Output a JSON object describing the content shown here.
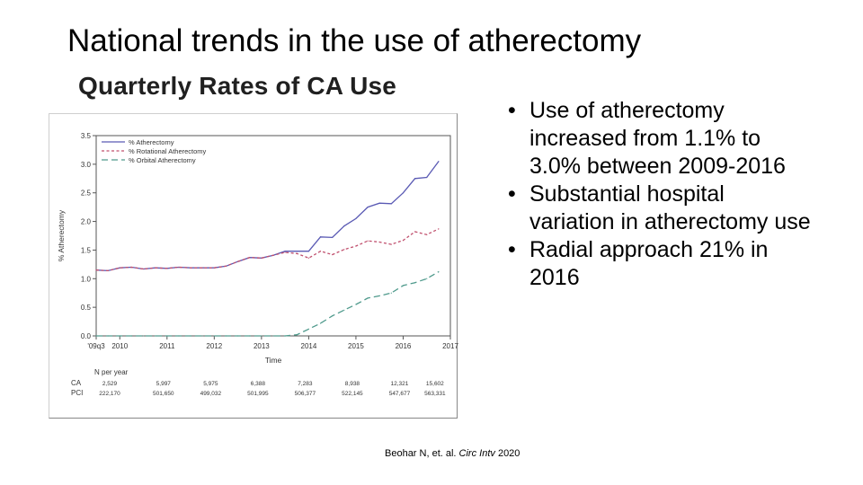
{
  "slide": {
    "title": "National trends in the use of atherectomy",
    "chart_heading": "Quarterly Rates of CA Use",
    "bullets": [
      "Use of atherectomy increased from 1.1% to 3.0% between 2009-2016",
      "Substantial hospital variation in atherectomy use",
      "Radial approach 21% in 2016"
    ],
    "bullet_glyph": "•",
    "citation": {
      "authors": "Beohar N, et. al. ",
      "journal": "Circ Intv",
      "year": " 2020"
    }
  },
  "table": {
    "header": "N per year",
    "rows": [
      {
        "label": "CA",
        "values": [
          "2,529",
          "5,997",
          "5,975",
          "6,388",
          "7,283",
          "8,938",
          "12,321",
          "15,602"
        ]
      },
      {
        "label": "PCI",
        "values": [
          "222,170",
          "501,650",
          "499,032",
          "501,995",
          "506,377",
          "522,145",
          "547,677",
          "563,331"
        ]
      }
    ]
  },
  "chart_data": {
    "type": "line",
    "title": "Quarterly Rates of CA Use",
    "xlabel": "Time",
    "ylabel": "% Atherectomy",
    "xlim": [
      2009.5,
      2017.0
    ],
    "ylim": [
      0.0,
      3.5
    ],
    "x_ticks": [
      2009.5,
      2010,
      2011,
      2012,
      2013,
      2014,
      2015,
      2016,
      2017
    ],
    "x_tick_labels": [
      "'09q3",
      "2010",
      "2011",
      "2012",
      "2013",
      "2014",
      "2015",
      "2016",
      "2017"
    ],
    "y_ticks": [
      0.0,
      0.5,
      1.0,
      1.5,
      2.0,
      2.5,
      3.0,
      3.5
    ],
    "y_tick_labels": [
      "0.0",
      "0.5",
      "1.0",
      "1.5",
      "2.0",
      "2.5",
      "3.0",
      "3.5"
    ],
    "grid": false,
    "legend_position": "top-left",
    "x": [
      2009.5,
      2009.75,
      2010.0,
      2010.25,
      2010.5,
      2010.75,
      2011.0,
      2011.25,
      2011.5,
      2011.75,
      2012.0,
      2012.25,
      2012.5,
      2012.75,
      2013.0,
      2013.25,
      2013.5,
      2013.75,
      2014.0,
      2014.25,
      2014.5,
      2014.75,
      2015.0,
      2015.25,
      2015.5,
      2015.75,
      2016.0,
      2016.25,
      2016.5,
      2016.75
    ],
    "series": [
      {
        "name": "% Atherectomy",
        "color": "#5a5ab4",
        "dash": "solid",
        "values": [
          1.15,
          1.14,
          1.19,
          1.2,
          1.17,
          1.19,
          1.18,
          1.2,
          1.19,
          1.19,
          1.19,
          1.22,
          1.3,
          1.37,
          1.36,
          1.41,
          1.48,
          1.48,
          1.48,
          1.73,
          1.72,
          1.92,
          2.05,
          2.25,
          2.32,
          2.31,
          2.5,
          2.75,
          2.77,
          3.05
        ]
      },
      {
        "name": "% Rotational Atherectomy",
        "color": "#c0506e",
        "dash": "dashed",
        "values": [
          1.15,
          1.14,
          1.19,
          1.2,
          1.17,
          1.19,
          1.18,
          1.2,
          1.19,
          1.19,
          1.19,
          1.22,
          1.3,
          1.37,
          1.36,
          1.41,
          1.46,
          1.44,
          1.36,
          1.48,
          1.42,
          1.51,
          1.57,
          1.66,
          1.64,
          1.6,
          1.67,
          1.82,
          1.77,
          1.87
        ]
      },
      {
        "name": "% Orbital Atherectomy",
        "color": "#4f9a8c",
        "dash": "longdash",
        "values": [
          0.0,
          0.0,
          0.0,
          0.0,
          0.0,
          0.0,
          0.0,
          0.0,
          0.0,
          0.0,
          0.0,
          0.0,
          0.0,
          0.0,
          0.0,
          0.0,
          0.0,
          0.02,
          0.12,
          0.22,
          0.35,
          0.45,
          0.55,
          0.66,
          0.7,
          0.75,
          0.88,
          0.93,
          1.0,
          1.12
        ]
      }
    ]
  }
}
